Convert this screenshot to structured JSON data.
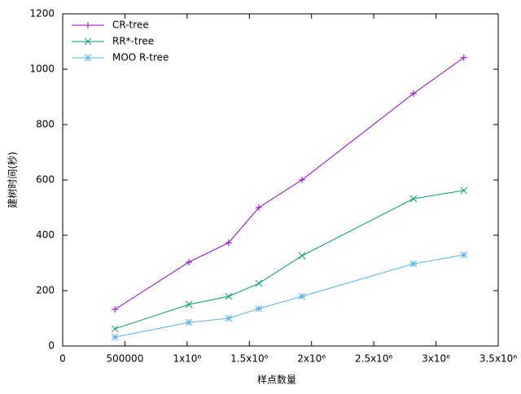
{
  "chart_data": {
    "type": "line",
    "xlabel": "样点数量",
    "ylabel": "建树时间(秒)",
    "x": [
      420000,
      1014000,
      1334000,
      1576000,
      1923000,
      2819000,
      3224000
    ],
    "series": [
      {
        "name": "CR-tree",
        "color": "#9400d3",
        "marker": "plus",
        "values": [
          132,
          303,
          373,
          500,
          600,
          912,
          1042
        ]
      },
      {
        "name": "RR*-tree",
        "color": "#009e73",
        "marker": "cross",
        "values": [
          62,
          150,
          179,
          226,
          326,
          532,
          562
        ]
      },
      {
        "name": "MOO R-tree",
        "color": "#56b4e9",
        "marker": "star",
        "values": [
          32,
          85,
          100,
          135,
          179,
          297,
          329
        ]
      }
    ],
    "xlim": [
      0,
      3500000
    ],
    "xticks": [
      0,
      500000,
      {
        "value": 1000000,
        "label": "1x10⁶"
      },
      {
        "value": 1500000,
        "label": "1.5x10⁶"
      },
      {
        "value": 2000000,
        "label": "2x10⁶"
      },
      {
        "value": 2500000,
        "label": "2.5x10⁶"
      },
      {
        "value": 3000000,
        "label": "3x10⁶"
      },
      {
        "value": 3500000,
        "label": "3.5x10⁶"
      }
    ],
    "ylim": [
      0,
      1200
    ],
    "yticks": [
      0,
      200,
      400,
      600,
      800,
      1000,
      1200
    ],
    "grid": false,
    "legend": "top-left"
  }
}
